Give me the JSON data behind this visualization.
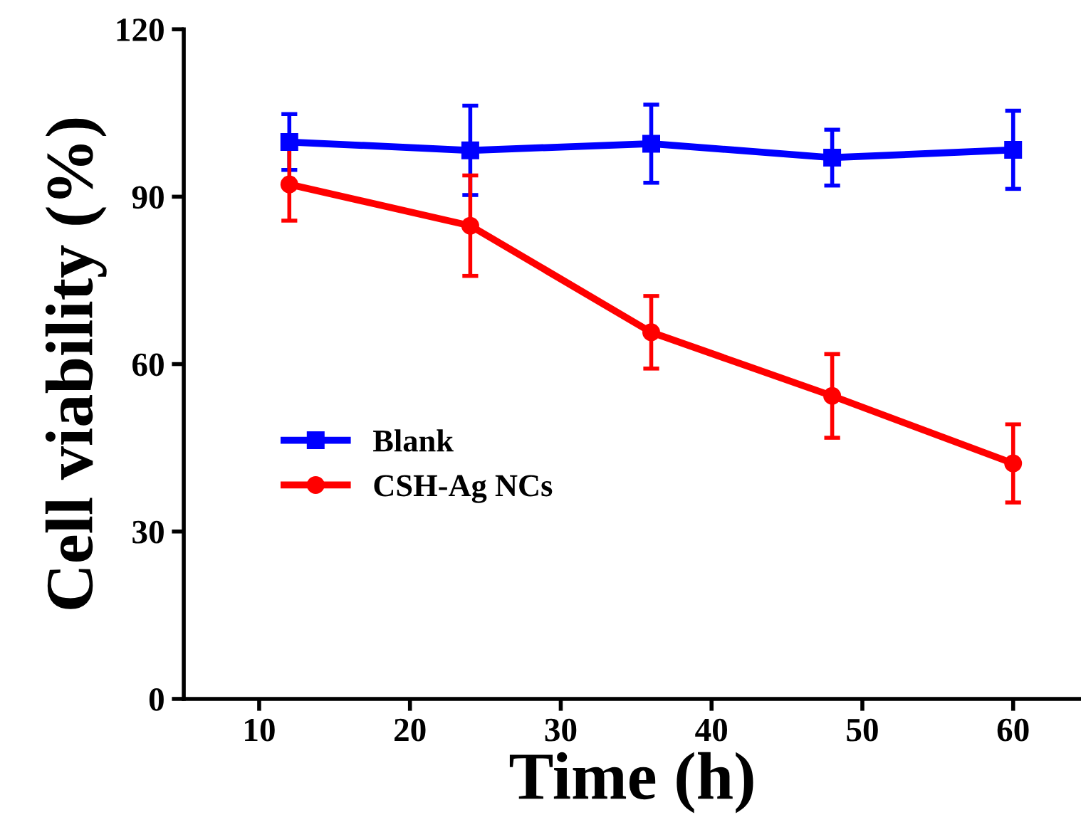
{
  "chart_data": {
    "type": "line",
    "xlabel": "Time (h)",
    "ylabel": "Cell viability (%)",
    "x": [
      12,
      24,
      36,
      48,
      60
    ],
    "series": [
      {
        "name": "Blank",
        "color": "#0000ff",
        "marker": "square",
        "values": [
          99.8,
          98.3,
          99.5,
          97.0,
          98.4
        ],
        "errors": [
          5,
          8,
          7,
          5,
          7
        ]
      },
      {
        "name": "CSH-Ag NCs",
        "color": "#ff0000",
        "marker": "circle",
        "values": [
          92.2,
          84.8,
          65.7,
          54.3,
          42.2
        ],
        "errors": [
          6.5,
          9,
          6.5,
          7.5,
          7
        ]
      }
    ],
    "xlim": [
      5,
      64.5
    ],
    "ylim": [
      0,
      120
    ],
    "xticks": [
      10,
      20,
      30,
      40,
      50,
      60
    ],
    "yticks": [
      0,
      30,
      60,
      90,
      120
    ],
    "legend": "bottom left",
    "grid": false,
    "line_style": "solid"
  }
}
